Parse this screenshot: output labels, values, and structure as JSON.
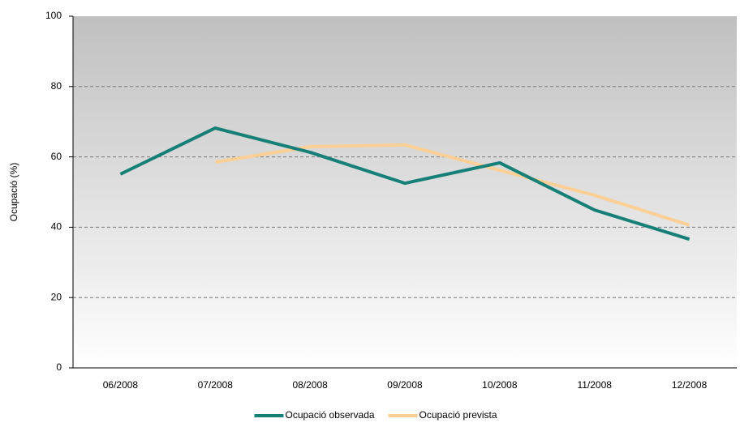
{
  "chart_data": {
    "type": "line",
    "y_label": "Ocupació (%)",
    "categories": [
      "06/2008",
      "07/2008",
      "08/2008",
      "09/2008",
      "10/2008",
      "11/2008",
      "12/2008"
    ],
    "series": [
      {
        "name": "Ocupació observada",
        "color": "#167f77",
        "values": [
          55.1,
          68.2,
          61.3,
          52.5,
          58.3,
          44.9,
          36.6
        ]
      },
      {
        "name": "Ocupació prevista",
        "color": "#fccf96",
        "values": [
          null,
          58.5,
          62.9,
          63.4,
          56.2,
          49.1,
          40.6
        ]
      }
    ],
    "ylim": [
      0,
      100
    ],
    "yticks": [
      0,
      20,
      40,
      60,
      80,
      100
    ],
    "grid": true,
    "legend": "bottom"
  }
}
